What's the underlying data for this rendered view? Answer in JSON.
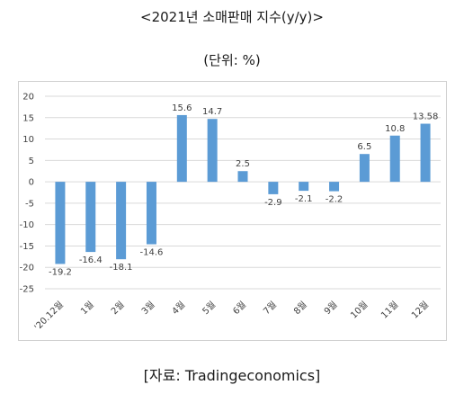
{
  "header": {
    "title": "<2021년 소매판매 지수(y/y)>",
    "unit": "(단위: %)"
  },
  "footer": {
    "source": "[자료: Tradingeconomics]"
  },
  "colors": {
    "bar": "#5b9bd5",
    "grid": "#d9d9d9",
    "text": "#404040"
  },
  "chart_data": {
    "type": "bar",
    "title": "<2021년 소매판매 지수(y/y)>",
    "xlabel": "",
    "ylabel": "",
    "categories": [
      "'20.12월",
      "1월",
      "2월",
      "3월",
      "4월",
      "5월",
      "6월",
      "7월",
      "8월",
      "9월",
      "10월",
      "11월",
      "12월"
    ],
    "values": [
      -19.2,
      -16.4,
      -18.1,
      -14.6,
      15.6,
      14.7,
      2.5,
      -2.9,
      -2.1,
      -2.2,
      6.5,
      10.8,
      13.58
    ],
    "value_labels": [
      "-19.2",
      "-16.4",
      "-18.1",
      "-14.6",
      "15.6",
      "14.7",
      "2.5",
      "-2.9",
      "-2.1",
      "-2.2",
      "6.5",
      "10.8",
      "13.58"
    ],
    "ylim": [
      -25,
      20
    ],
    "yticks": [
      20,
      15,
      10,
      5,
      0,
      -5,
      -10,
      -15,
      -20,
      -25
    ],
    "grid": true,
    "legend": "none"
  }
}
